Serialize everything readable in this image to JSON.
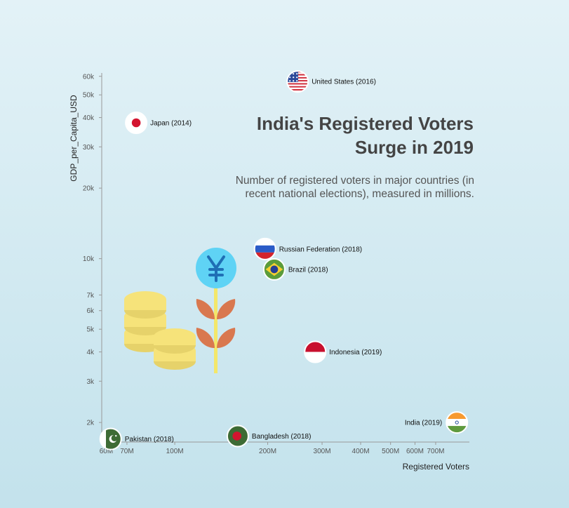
{
  "chart_data": {
    "type": "scatter",
    "title_lines": [
      "India's Registered Voters",
      "Surge in 2019"
    ],
    "subtitle_lines": [
      "Number of registered voters in major countries (in",
      "recent national elections), measured in millions."
    ],
    "xlabel": "Registered Voters",
    "ylabel": "GDP_per_Capita_USD",
    "x_scale": "log",
    "y_scale": "log",
    "xlim": [
      58,
      900
    ],
    "ylim": [
      1650,
      62000
    ],
    "x_ticks": [
      {
        "value": 60,
        "label": "60M"
      },
      {
        "value": 70,
        "label": "70M"
      },
      {
        "value": 100,
        "label": "100M"
      },
      {
        "value": 200,
        "label": "200M"
      },
      {
        "value": 300,
        "label": "300M"
      },
      {
        "value": 400,
        "label": "400M"
      },
      {
        "value": 500,
        "label": "500M"
      },
      {
        "value": 600,
        "label": "600M"
      },
      {
        "value": 700,
        "label": "700M"
      }
    ],
    "y_ticks": [
      {
        "value": 2000,
        "label": "2k"
      },
      {
        "value": 3000,
        "label": "3k"
      },
      {
        "value": 4000,
        "label": "4k"
      },
      {
        "value": 5000,
        "label": "5k"
      },
      {
        "value": 6000,
        "label": "6k"
      },
      {
        "value": 7000,
        "label": "7k"
      },
      {
        "value": 10000,
        "label": "10k"
      },
      {
        "value": 20000,
        "label": "20k"
      },
      {
        "value": 30000,
        "label": "30k"
      },
      {
        "value": 40000,
        "label": "40k"
      },
      {
        "value": 50000,
        "label": "50k"
      },
      {
        "value": 60000,
        "label": "60k"
      }
    ],
    "points": [
      {
        "label": "United States (2016)",
        "x": 250,
        "y": 57000,
        "flag": "us",
        "label_side": "right"
      },
      {
        "label": "Japan (2014)",
        "x": 75,
        "y": 38000,
        "flag": "jp",
        "label_side": "right"
      },
      {
        "label": "Russian Federation (2018)",
        "x": 196,
        "y": 11000,
        "flag": "ru",
        "label_side": "right"
      },
      {
        "label": "Brazil (2018)",
        "x": 210,
        "y": 9000,
        "flag": "br",
        "label_side": "right"
      },
      {
        "label": "Indonesia (2019)",
        "x": 285,
        "y": 4000,
        "flag": "id",
        "label_side": "right"
      },
      {
        "label": "India (2019)",
        "x": 820,
        "y": 2000,
        "flag": "in",
        "label_side": "left"
      },
      {
        "label": "Bangladesh (2018)",
        "x": 160,
        "y": 1750,
        "flag": "bd",
        "label_side": "right"
      },
      {
        "label": "Pakistan (2018)",
        "x": 62,
        "y": 1700,
        "flag": "pk",
        "label_side": "right"
      }
    ],
    "grid": false,
    "decoration": "coin-stacks-and-yen-plant"
  },
  "colors": {
    "axis": "#999999",
    "coin": "#f6e37a",
    "coin_shade": "#e6d26a",
    "yen_circle": "#5fd3f5",
    "yen_symbol": "#1f6fb5",
    "leaf": "#d9784f",
    "stem": "#f3e76a"
  },
  "icons": {
    "currency": "yen-icon"
  }
}
